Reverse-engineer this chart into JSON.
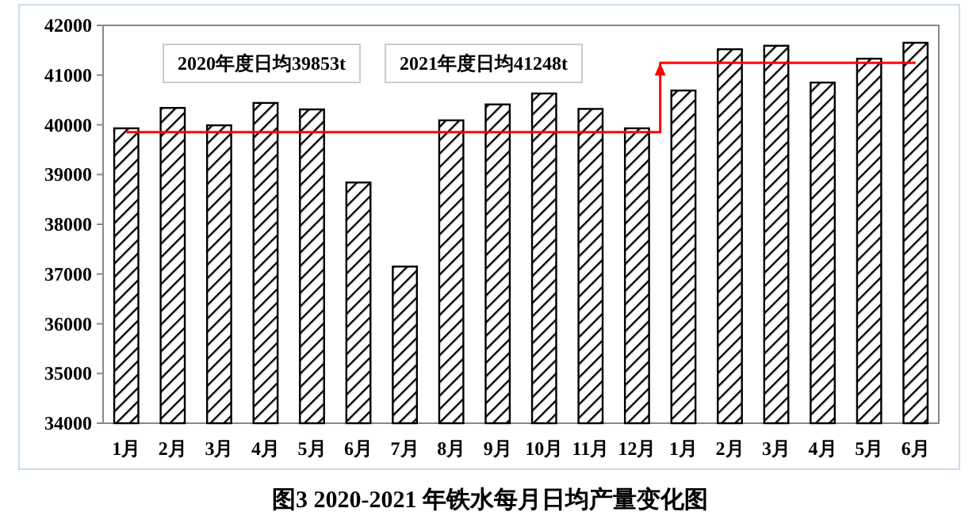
{
  "chart_data": {
    "type": "bar",
    "title": "图3 2020-2021 年铁水每月日均产量变化图",
    "categories": [
      "1月",
      "2月",
      "3月",
      "4月",
      "5月",
      "6月",
      "7月",
      "8月",
      "9月",
      "10月",
      "11月",
      "12月",
      "1月",
      "2月",
      "3月",
      "4月",
      "5月",
      "6月"
    ],
    "series": [
      {
        "type": "bar",
        "color": "#000000",
        "values": [
          39930,
          40340,
          39990,
          40440,
          40310,
          38840,
          37150,
          40090,
          40410,
          40630,
          40320,
          39930,
          40690,
          41520,
          41590,
          40850,
          41330,
          41650
        ]
      },
      {
        "type": "step",
        "color": "#ff0000",
        "values": [
          39853,
          39853,
          39853,
          39853,
          39853,
          39853,
          39853,
          39853,
          39853,
          39853,
          39853,
          39853,
          41248,
          41248,
          41248,
          41248,
          41248,
          41248
        ]
      }
    ],
    "ylim": [
      34000,
      42000
    ],
    "yticks": [
      34000,
      35000,
      36000,
      37000,
      38000,
      39000,
      40000,
      41000,
      42000
    ],
    "annotations": [
      "2020年度日均39853t",
      "2021年度日均41248t"
    ],
    "grid": false
  }
}
